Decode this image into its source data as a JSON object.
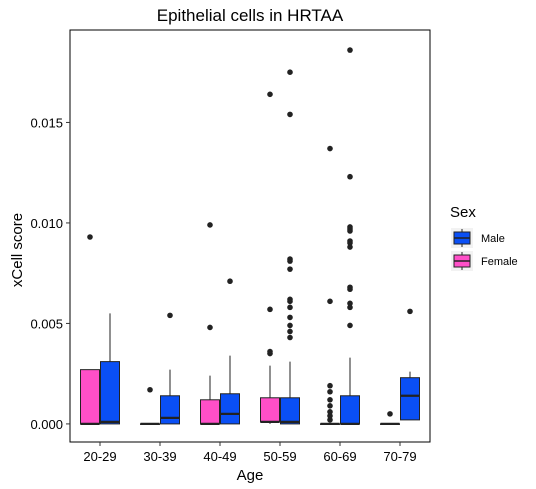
{
  "chart_data": {
    "type": "boxplot",
    "title": "Epithelial cells in HRTAA",
    "xlabel": "Age",
    "ylabel": "xCell score",
    "categories": [
      "20-29",
      "30-39",
      "40-49",
      "50-59",
      "60-69",
      "70-79"
    ],
    "ylim": [
      -0.0009,
      0.0196
    ],
    "yticks": [
      0.0,
      0.005,
      0.01,
      0.015
    ],
    "ytick_labels": [
      "0.000",
      "0.005",
      "0.010",
      "0.015"
    ],
    "grid": false,
    "legend": {
      "title": "Sex",
      "position": "right",
      "entries": [
        {
          "label": "Male",
          "color": "#0a4ff5"
        },
        {
          "label": "Female",
          "color": "#ff4fc8"
        }
      ]
    },
    "series": [
      {
        "name": "Female",
        "color": "#ff4fc8",
        "boxes": [
          {
            "category": "20-29",
            "q1": 0.0,
            "median": 0.0,
            "q3": 0.0027,
            "whisker_low": 0.0,
            "whisker_high": 0.0027,
            "outliers": [
              0.0093
            ]
          },
          {
            "category": "30-39",
            "q1": 0.0,
            "median": 0.0,
            "q3": 0.0,
            "whisker_low": 0.0,
            "whisker_high": 0.0,
            "outliers": [
              0.0017
            ]
          },
          {
            "category": "40-49",
            "q1": 0.0,
            "median": 0.0,
            "q3": 0.0012,
            "whisker_low": 0.0,
            "whisker_high": 0.0024,
            "outliers": [
              0.0048,
              0.0099
            ]
          },
          {
            "category": "50-59",
            "q1": 0.0001,
            "median": 0.0001,
            "q3": 0.0013,
            "whisker_low": 0.0,
            "whisker_high": 0.0029,
            "outliers": [
              0.0035,
              0.0036,
              0.0057,
              0.0164
            ]
          },
          {
            "category": "60-69",
            "q1": 0.0,
            "median": 0.0,
            "q3": 0.0,
            "whisker_low": 0.0,
            "whisker_high": 0.0,
            "outliers": [
              0.0002,
              0.0004,
              0.0006,
              0.0009,
              0.0012,
              0.0016,
              0.0019,
              0.0061,
              0.0137
            ]
          },
          {
            "category": "70-79",
            "q1": 0.0,
            "median": 0.0,
            "q3": 0.0,
            "whisker_low": 0.0,
            "whisker_high": 0.0,
            "outliers": [
              0.0005
            ]
          }
        ]
      },
      {
        "name": "Male",
        "color": "#0a4ff5",
        "boxes": [
          {
            "category": "20-29",
            "q1": 0.0,
            "median": 0.0001,
            "q3": 0.0031,
            "whisker_low": 0.0,
            "whisker_high": 0.0055,
            "outliers": []
          },
          {
            "category": "30-39",
            "q1": 0.0,
            "median": 0.0003,
            "q3": 0.0014,
            "whisker_low": 0.0,
            "whisker_high": 0.0027,
            "outliers": [
              0.0054
            ]
          },
          {
            "category": "40-49",
            "q1": 0.0,
            "median": 0.0005,
            "q3": 0.0015,
            "whisker_low": 0.0,
            "whisker_high": 0.0034,
            "outliers": [
              0.0071
            ]
          },
          {
            "category": "50-59",
            "q1": 0.0,
            "median": 0.0001,
            "q3": 0.0013,
            "whisker_low": 0.0,
            "whisker_high": 0.0031,
            "outliers": [
              0.0043,
              0.0046,
              0.0049,
              0.0053,
              0.0058,
              0.0061,
              0.0062,
              0.0077,
              0.0081,
              0.0082,
              0.0154,
              0.0175
            ]
          },
          {
            "category": "60-69",
            "q1": 0.0,
            "median": 0.0,
            "q3": 0.0014,
            "whisker_low": 0.0,
            "whisker_high": 0.0033,
            "outliers": [
              0.0049,
              0.0058,
              0.006,
              0.0067,
              0.0068,
              0.0088,
              0.009,
              0.0091,
              0.0096,
              0.0097,
              0.0098,
              0.0123,
              0.0186
            ]
          },
          {
            "category": "70-79",
            "q1": 0.0002,
            "median": 0.0014,
            "q3": 0.0023,
            "whisker_low": 0.0002,
            "whisker_high": 0.0026,
            "outliers": [
              0.0056
            ]
          }
        ]
      }
    ]
  }
}
